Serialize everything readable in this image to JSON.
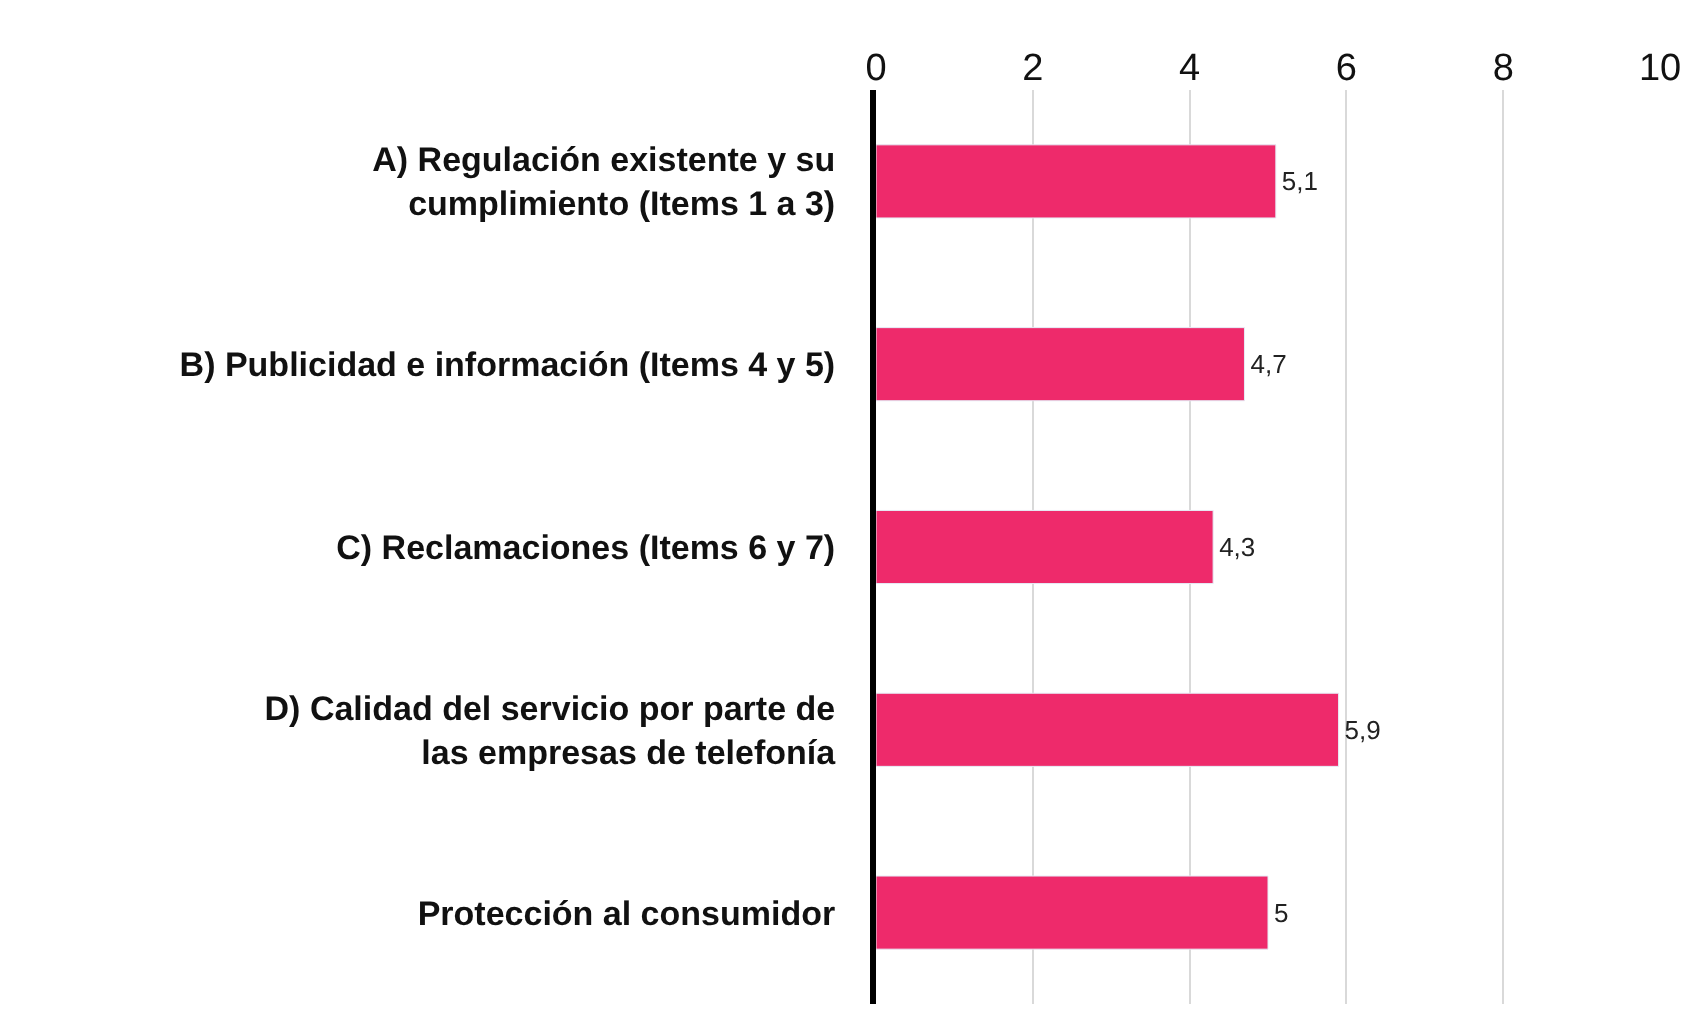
{
  "chart_data": {
    "type": "bar",
    "orientation": "horizontal",
    "categories": [
      "A) Regulación existente y su cumplimiento (Items 1 a 3)",
      "B) Publicidad e información (Items 4 y 5)",
      "C) Reclamaciones (Items 6 y 7)",
      "D) Calidad del servicio por parte de las empresas de telefonía",
      "Protección al consumidor"
    ],
    "values": [
      5.1,
      4.7,
      4.3,
      5.9,
      5
    ],
    "value_labels": [
      "5,1",
      "4,7",
      "4,3",
      "5,9",
      "5"
    ],
    "color": "#ee2a6b",
    "xlim": [
      0,
      10
    ],
    "xticks": [
      0,
      2,
      4,
      6,
      8,
      10
    ],
    "grid": "x",
    "legend": false
  }
}
